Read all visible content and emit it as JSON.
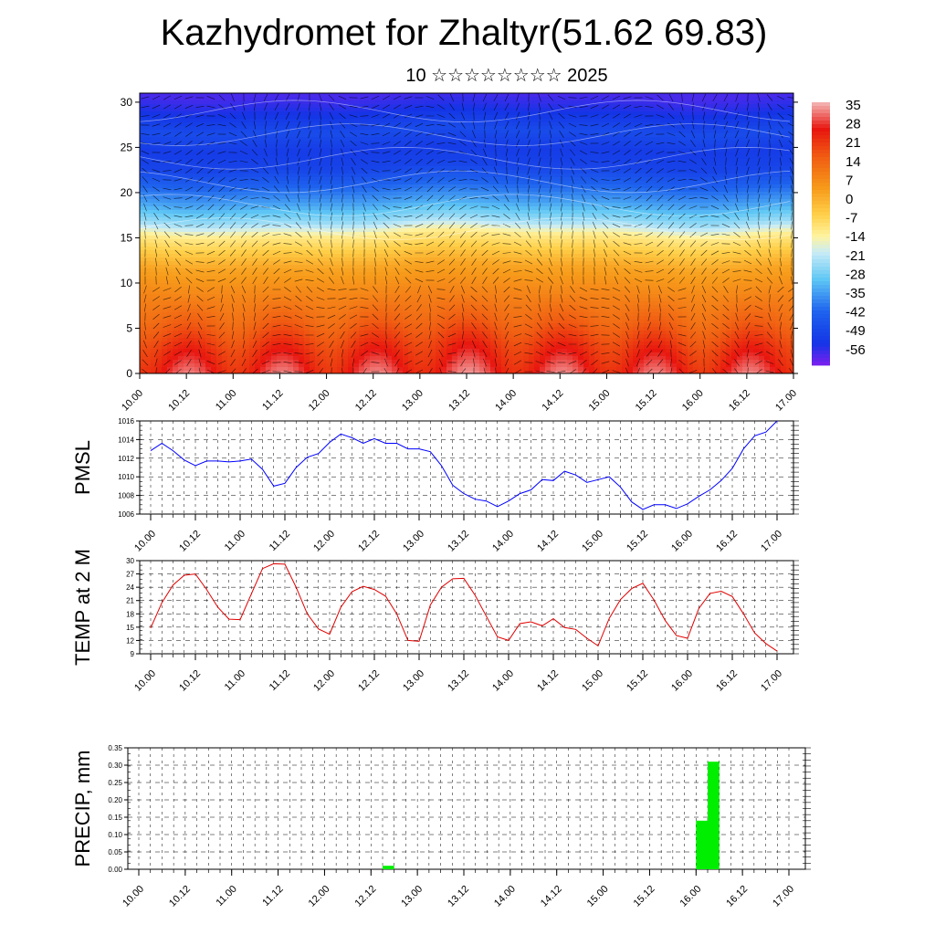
{
  "title": "Kazhydromet for Zhaltyr(51.62 69.83)",
  "subtitle": "10 ☆☆☆☆☆☆☆☆ 2025",
  "time_ticks": [
    "10.00",
    "10.12",
    "11.00",
    "11.12",
    "12.00",
    "12.12",
    "13.00",
    "13.12",
    "14.00",
    "14.12",
    "15.00",
    "15.12",
    "16.00",
    "16.12",
    "17.00"
  ],
  "chart_data": [
    {
      "type": "heatmap",
      "description_label": "",
      "xlabel": "",
      "ylabel": "",
      "ylim": [
        0,
        31
      ],
      "yticks": [
        "0",
        "5",
        "10",
        "15",
        "20",
        "25",
        "30"
      ],
      "x": [
        "10.00",
        "10.12",
        "11.00",
        "11.12",
        "12.00",
        "12.12",
        "13.00",
        "13.12",
        "14.00",
        "14.12",
        "15.00",
        "15.12",
        "16.00",
        "16.12",
        "17.00"
      ],
      "colorbar_labels": [
        "35",
        "28",
        "21",
        "14",
        "7",
        "0",
        "-7",
        "-14",
        "-21",
        "-28",
        "-35",
        "-42",
        "-49",
        "-56"
      ],
      "colorbar_range": [
        -60,
        38
      ],
      "colors": {
        "hot": "#e8150f",
        "warm": "#f79a1a",
        "neutral": "#fff3a0",
        "cool": "#5fc7f5",
        "cold": "#1434e6",
        "coldest": "#7c1ff0"
      },
      "temp_by_height": [
        [
          0,
          30
        ],
        [
          3,
          24
        ],
        [
          6,
          16
        ],
        [
          9,
          10
        ],
        [
          12,
          4
        ],
        [
          14,
          -4
        ],
        [
          15.5,
          -10
        ],
        [
          17,
          -22
        ],
        [
          19,
          -32
        ],
        [
          21,
          -40
        ],
        [
          23,
          -48
        ],
        [
          25,
          -50
        ],
        [
          27,
          -46
        ],
        [
          29,
          -52
        ],
        [
          31,
          -56
        ]
      ],
      "surface_diurnal_amplitude": 6
    },
    {
      "type": "line",
      "ylabel": "PMSL",
      "ylim": [
        1006,
        1016
      ],
      "yticks": [
        "1006",
        "1008",
        "1010",
        "1012",
        "1014",
        "1016"
      ],
      "color": "#0000ff",
      "series": [
        {
          "name": "",
          "x_hours": [
            0,
            3,
            6,
            9,
            12,
            15,
            18,
            21,
            24,
            27,
            30,
            33,
            36,
            39,
            42,
            45,
            48,
            51,
            54,
            57,
            60,
            63,
            66,
            69,
            72,
            75,
            78,
            81,
            84,
            87,
            90,
            93,
            96,
            99,
            102,
            105,
            108,
            111,
            114,
            117,
            120,
            123,
            126,
            129,
            132,
            135,
            138,
            141,
            144,
            147,
            150,
            153,
            156,
            159,
            162,
            165,
            168
          ],
          "values": [
            1012.8,
            1013.6,
            1012.8,
            1011.8,
            1011.2,
            1011.7,
            1011.7,
            1011.6,
            1011.7,
            1011.9,
            1010.8,
            1009.0,
            1009.3,
            1011.0,
            1012.1,
            1012.5,
            1013.7,
            1014.6,
            1014.2,
            1013.6,
            1014.1,
            1013.6,
            1013.6,
            1013.0,
            1013.0,
            1012.7,
            1011.2,
            1009.1,
            1008.2,
            1007.6,
            1007.4,
            1006.8,
            1007.4,
            1008.2,
            1008.6,
            1009.7,
            1009.6,
            1010.6,
            1010.2,
            1009.4,
            1009.7,
            1010.0,
            1008.9,
            1007.3,
            1006.5,
            1007.0,
            1007.0,
            1006.6,
            1007.1,
            1007.9,
            1008.6,
            1009.6,
            1010.9,
            1013.0,
            1014.4,
            1014.8,
            1016.0
          ]
        }
      ]
    },
    {
      "type": "line",
      "ylabel": "TEMP at 2 M",
      "ylim": [
        9,
        30
      ],
      "yticks": [
        "9",
        "12",
        "15",
        "18",
        "21",
        "24",
        "27",
        "30"
      ],
      "color": "#e00000",
      "series": [
        {
          "name": "",
          "x_hours": [
            0,
            3,
            6,
            9,
            12,
            15,
            18,
            21,
            24,
            27,
            30,
            33,
            36,
            39,
            42,
            45,
            48,
            51,
            54,
            57,
            60,
            63,
            66,
            69,
            72,
            75,
            78,
            81,
            84,
            87,
            90,
            93,
            96,
            99,
            102,
            105,
            108,
            111,
            114,
            117,
            120,
            123,
            126,
            129,
            132,
            135,
            138,
            141,
            144,
            147,
            150,
            153,
            156,
            159,
            162,
            165,
            168
          ],
          "values": [
            14.8,
            20.5,
            24.5,
            26.7,
            27.0,
            23.5,
            19.5,
            16.8,
            16.7,
            22.5,
            28.2,
            29.3,
            29.2,
            24.0,
            18.0,
            14.6,
            13.4,
            19.5,
            23.0,
            24.2,
            23.5,
            22.0,
            18.0,
            12.0,
            11.8,
            20.0,
            24.0,
            25.9,
            26.0,
            22.2,
            17.5,
            12.8,
            12.0,
            15.8,
            16.2,
            15.3,
            16.9,
            14.9,
            14.5,
            12.5,
            10.8,
            17.0,
            21.2,
            23.7,
            24.9,
            21.1,
            16.5,
            13.1,
            12.5,
            19.2,
            22.6,
            23.1,
            21.9,
            18.0,
            13.7,
            11.3,
            9.6
          ]
        }
      ]
    },
    {
      "type": "bar",
      "ylabel": "PRECIP, mm",
      "ylim": [
        0,
        0.35
      ],
      "yticks": [
        "0.00",
        "0.05",
        "0.10",
        "0.15",
        "0.20",
        "0.25",
        "0.30",
        "0.35"
      ],
      "color": "#00ee00",
      "bars": [
        {
          "x_hours": 63,
          "width_hours": 3,
          "value": 0.01
        },
        {
          "x_hours": 144,
          "width_hours": 3,
          "value": 0.14
        },
        {
          "x_hours": 147,
          "width_hours": 3,
          "value": 0.31
        }
      ]
    }
  ]
}
